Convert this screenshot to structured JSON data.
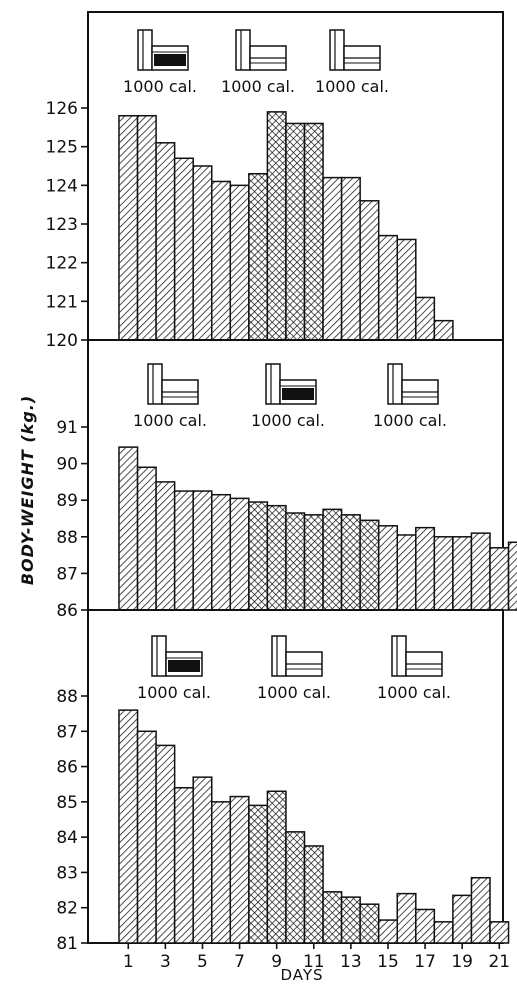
{
  "figure": {
    "ylabel": "BODY-WEIGHT (kg.)",
    "xlabel": "DAYS",
    "x_tick_labels": [
      "1",
      "3",
      "5",
      "7",
      "9",
      "11",
      "13",
      "15",
      "17",
      "19",
      "21"
    ]
  },
  "chart_data": [
    {
      "type": "bar",
      "panel": "top",
      "x": [
        1,
        2,
        3,
        4,
        5,
        6,
        7,
        8,
        9,
        10,
        11,
        12,
        13,
        14,
        15,
        16,
        17,
        18
      ],
      "values": [
        125.8,
        125.8,
        125.1,
        124.7,
        124.5,
        124.1,
        124.0,
        124.3,
        125.9,
        125.6,
        125.6,
        124.2,
        124.2,
        123.6,
        122.7,
        122.6,
        121.1,
        120.5
      ],
      "ylim": [
        120,
        127
      ],
      "yticks": [
        "120",
        "121",
        "122",
        "123",
        "124",
        "125",
        "126"
      ],
      "segments": [
        {
          "days": [
            1,
            7
          ],
          "pattern": "hatch"
        },
        {
          "days": [
            8,
            11
          ],
          "pattern": "crosshatch"
        },
        {
          "days": [
            12,
            18
          ],
          "pattern": "hatch"
        }
      ],
      "diet_labels": [
        "1000 cal.",
        "1000 cal.",
        "1000 cal."
      ],
      "diet_icon_fill": [
        "dark",
        "light",
        "light"
      ]
    },
    {
      "type": "bar",
      "panel": "middle",
      "x": [
        1,
        2,
        3,
        4,
        5,
        6,
        7,
        8,
        9,
        10,
        11,
        12,
        13,
        14,
        15,
        16,
        17,
        18,
        19,
        20,
        21,
        22
      ],
      "values": [
        90.45,
        89.9,
        89.5,
        89.25,
        89.25,
        89.15,
        89.05,
        88.95,
        88.85,
        88.65,
        88.6,
        88.75,
        88.6,
        88.45,
        88.3,
        88.05,
        88.25,
        88.0,
        88.0,
        88.1,
        87.7,
        87.85
      ],
      "ylim": [
        86,
        92
      ],
      "yticks": [
        "86",
        "87",
        "88",
        "89",
        "90",
        "91"
      ],
      "segments": [
        {
          "days": [
            1,
            7
          ],
          "pattern": "hatch"
        },
        {
          "days": [
            8,
            14
          ],
          "pattern": "crosshatch"
        },
        {
          "days": [
            15,
            22
          ],
          "pattern": "hatch"
        }
      ],
      "diet_labels": [
        "1000 cal.",
        "1000 cal.",
        "1000 cal."
      ],
      "diet_icon_fill": [
        "light",
        "dark",
        "light"
      ]
    },
    {
      "type": "bar",
      "panel": "bottom",
      "x": [
        1,
        2,
        3,
        4,
        5,
        6,
        7,
        8,
        9,
        10,
        11,
        12,
        13,
        14,
        15,
        16,
        17,
        18,
        19,
        20,
        21
      ],
      "values": [
        87.6,
        87.0,
        86.6,
        85.4,
        85.7,
        85.0,
        85.15,
        84.9,
        85.3,
        84.15,
        83.75,
        82.45,
        82.3,
        82.1,
        81.65,
        82.4,
        81.95,
        81.6,
        82.35,
        82.85,
        81.6
      ],
      "ylim": [
        81,
        89
      ],
      "yticks": [
        "81",
        "82",
        "83",
        "84",
        "85",
        "86",
        "87",
        "88"
      ],
      "segments": [
        {
          "days": [
            1,
            7
          ],
          "pattern": "hatch"
        },
        {
          "days": [
            8,
            14
          ],
          "pattern": "crosshatch"
        },
        {
          "days": [
            15,
            21
          ],
          "pattern": "hatch"
        }
      ],
      "diet_labels": [
        "1000 cal.",
        "1000 cal.",
        "1000 cal."
      ],
      "diet_icon_fill": [
        "dark",
        "light",
        "light"
      ]
    }
  ]
}
